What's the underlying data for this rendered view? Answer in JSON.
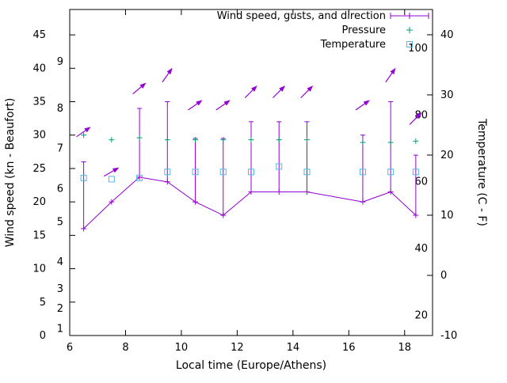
{
  "chart_data": {
    "type": "line",
    "title": "",
    "xlabel": "Local time (Europe/Athens)",
    "ylabel_left": "Wind speed (kn - Beaufort)",
    "ylabel_right": "Temperature (C - F)",
    "xlim": [
      6,
      19
    ],
    "ylim_left_kn": [
      0,
      48.8
    ],
    "ylim_right_c": [
      -10,
      44.2
    ],
    "xticks": [
      6,
      8,
      10,
      12,
      14,
      16,
      18
    ],
    "yticks_left_kn": [
      0,
      5,
      10,
      15,
      20,
      25,
      30,
      35,
      40,
      45
    ],
    "beaufort_ticks": [
      {
        "label": "1",
        "kn": 1
      },
      {
        "label": "2",
        "kn": 4
      },
      {
        "label": "3",
        "kn": 7
      },
      {
        "label": "4",
        "kn": 11
      },
      {
        "label": "5",
        "kn": 17
      },
      {
        "label": "6",
        "kn": 22
      },
      {
        "label": "7",
        "kn": 28
      },
      {
        "label": "8",
        "kn": 34
      },
      {
        "label": "9",
        "kn": 41
      }
    ],
    "yticks_right_c": [
      -10,
      0,
      10,
      20,
      30,
      40
    ],
    "fahrenheit_ticks": [
      20,
      40,
      60,
      80,
      100
    ],
    "x_hours": [
      6.5,
      7.5,
      8.5,
      9.5,
      10.5,
      11.5,
      12.5,
      13.5,
      14.5,
      16.5,
      17.5,
      18.4
    ],
    "series": [
      {
        "name": "Wind speed, gusts, and direction",
        "marker": "plus-errorbar-arrow",
        "color_key": "wind",
        "wind_kn": [
          16,
          20,
          23.7,
          23,
          20,
          18,
          21.5,
          21.5,
          21.5,
          20,
          21.5,
          18
        ],
        "gust_kn": [
          26,
          20,
          34,
          35,
          29.5,
          29.5,
          32,
          32,
          32,
          30,
          35,
          27
        ],
        "arrow_kn": [
          30.5,
          24.5,
          37,
          39,
          34.5,
          34.5,
          36.5,
          36.5,
          36.5,
          34.5,
          39,
          32.5
        ],
        "arrow_angle_deg": [
          35,
          30,
          40,
          55,
          35,
          35,
          45,
          45,
          45,
          35,
          55,
          45
        ]
      },
      {
        "name": "Pressure",
        "marker": "plus",
        "color_key": "pressure",
        "y_left_scale_kn": [
          30,
          29.3,
          29.6,
          29.3,
          29.3,
          29.3,
          29.3,
          29.3,
          29.3,
          28.9,
          28.9,
          29.1
        ]
      },
      {
        "name": "Temperature",
        "marker": "open-square",
        "color_key": "temperature",
        "temp_c": [
          16.2,
          16.0,
          16.2,
          17.2,
          17.2,
          17.2,
          17.2,
          18.1,
          17.2,
          17.2,
          17.2,
          17.2
        ]
      }
    ],
    "legend": {
      "entries": [
        "Wind speed, gusts, and direction",
        "Pressure",
        "Temperature"
      ],
      "position": "top-right-inside"
    },
    "colors": {
      "wind": "#9400d3",
      "pressure": "#009e73",
      "temperature": "#56b4e9",
      "axis": "#000000",
      "background": "#ffffff"
    }
  }
}
